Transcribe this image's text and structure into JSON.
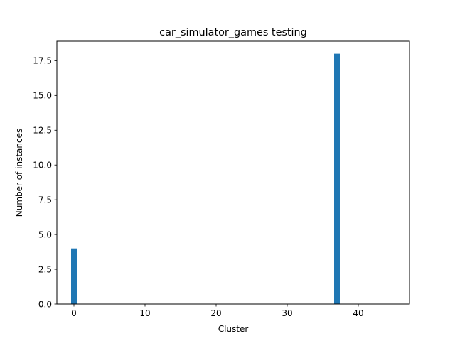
{
  "chart_data": {
    "type": "bar",
    "title": "car_simulator_games testing",
    "xlabel": "Cluster",
    "ylabel": "Number of instances",
    "x": [
      0,
      37
    ],
    "values": [
      4,
      18
    ],
    "bar_width": 0.8,
    "xlim": [
      -2.4,
      47.2
    ],
    "ylim": [
      0,
      18.9
    ],
    "xticks": [
      0,
      10,
      20,
      30,
      40
    ],
    "xtick_labels": [
      "0",
      "10",
      "20",
      "30",
      "40"
    ],
    "yticks": [
      0,
      2.5,
      5,
      7.5,
      10,
      12.5,
      15,
      17.5
    ],
    "ytick_labels": [
      "0.0",
      "2.5",
      "5.0",
      "7.5",
      "10.0",
      "12.5",
      "15.0",
      "17.5"
    ],
    "grid": false,
    "bar_color": "#1f77b4"
  }
}
